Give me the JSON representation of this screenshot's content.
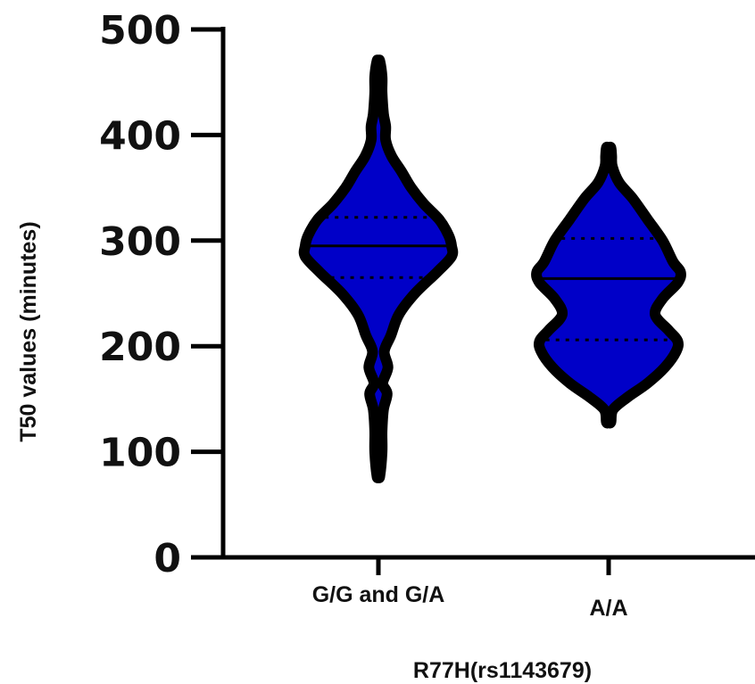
{
  "chart_data": {
    "type": "violin",
    "title": "",
    "xlabel": "R77H(rs1143679)",
    "ylabel": "T50 values (minutes)",
    "ylim": [
      0,
      500
    ],
    "yticks": [
      0,
      100,
      200,
      300,
      400,
      500
    ],
    "grid": false,
    "legend": "none",
    "fill_color": "#0000c8",
    "outline_color": "#000000",
    "categories": [
      "G/G and G/A",
      "A/A"
    ],
    "series": [
      {
        "category": "G/G and G/A",
        "min": 77,
        "max": 470,
        "median": 295,
        "q1": 265,
        "q3": 322,
        "density": [
          [
            77,
            0.02
          ],
          [
            100,
            0.05
          ],
          [
            120,
            0.05
          ],
          [
            140,
            0.07
          ],
          [
            155,
            0.12
          ],
          [
            165,
            0.06
          ],
          [
            180,
            0.13
          ],
          [
            195,
            0.08
          ],
          [
            210,
            0.17
          ],
          [
            230,
            0.28
          ],
          [
            250,
            0.5
          ],
          [
            270,
            0.8
          ],
          [
            285,
            1.0
          ],
          [
            295,
            1.0
          ],
          [
            305,
            0.96
          ],
          [
            320,
            0.83
          ],
          [
            335,
            0.62
          ],
          [
            350,
            0.45
          ],
          [
            365,
            0.32
          ],
          [
            380,
            0.18
          ],
          [
            395,
            0.1
          ],
          [
            408,
            0.1
          ],
          [
            420,
            0.07
          ],
          [
            440,
            0.05
          ],
          [
            455,
            0.05
          ],
          [
            470,
            0.02
          ]
        ]
      },
      {
        "category": "A/A",
        "min": 128,
        "max": 388,
        "median": 264,
        "q1": 206,
        "q3": 302,
        "density": [
          [
            128,
            0.03
          ],
          [
            140,
            0.06
          ],
          [
            152,
            0.26
          ],
          [
            165,
            0.52
          ],
          [
            180,
            0.75
          ],
          [
            195,
            0.9
          ],
          [
            205,
            0.92
          ],
          [
            215,
            0.8
          ],
          [
            230,
            0.62
          ],
          [
            245,
            0.72
          ],
          [
            260,
            0.92
          ],
          [
            270,
            0.96
          ],
          [
            280,
            0.86
          ],
          [
            300,
            0.72
          ],
          [
            320,
            0.52
          ],
          [
            340,
            0.32
          ],
          [
            355,
            0.14
          ],
          [
            370,
            0.05
          ],
          [
            380,
            0.04
          ],
          [
            388,
            0.03
          ]
        ]
      }
    ]
  }
}
